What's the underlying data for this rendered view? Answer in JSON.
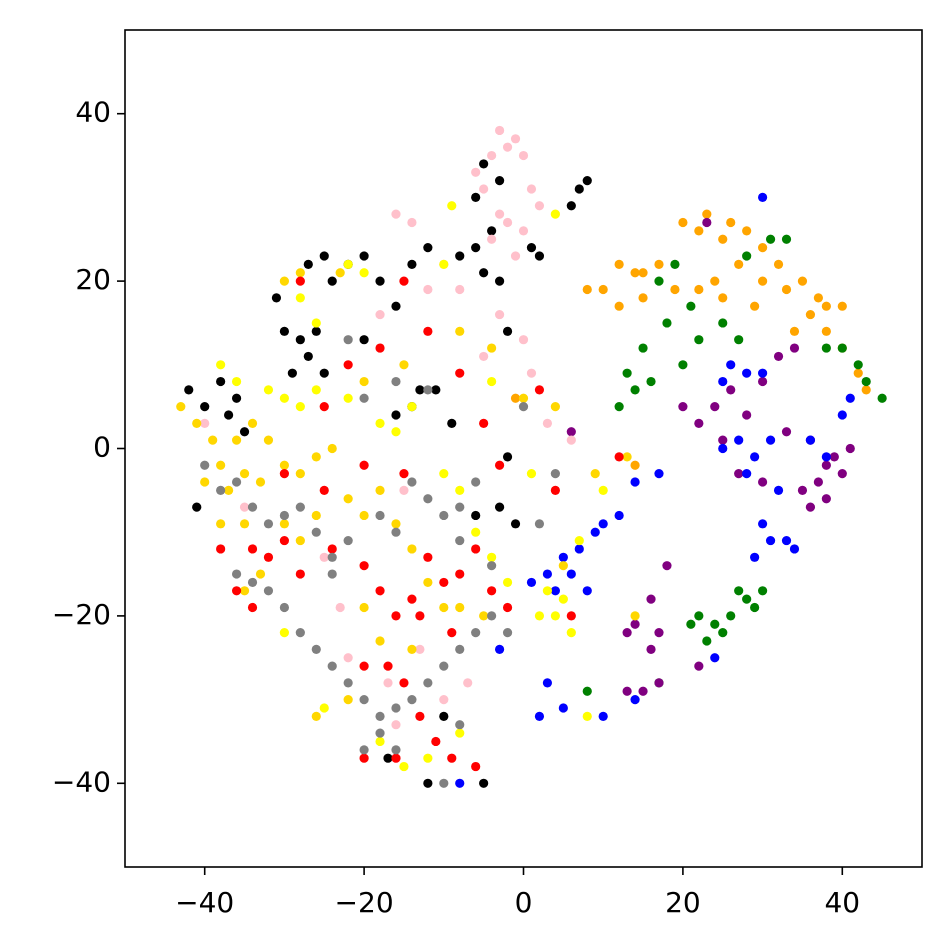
{
  "chart_data": {
    "type": "scatter",
    "xlim": [
      -50,
      50
    ],
    "ylim": [
      -50,
      50
    ],
    "xticks": [
      {
        "value": -40,
        "label": "−40"
      },
      {
        "value": -20,
        "label": "−20"
      },
      0,
      20,
      40
    ],
    "yticks": [
      {
        "value": -40,
        "label": "−40"
      },
      {
        "value": -20,
        "label": "−20"
      },
      0,
      20,
      40
    ],
    "grid": false,
    "series": [
      {
        "color": "#ffa500",
        "x": [
          20,
          23,
          26,
          28,
          30,
          25,
          22,
          27,
          32,
          35,
          37,
          38,
          40,
          36,
          34,
          33,
          30,
          12,
          14,
          17,
          10,
          12,
          15,
          19,
          22,
          25,
          29,
          40,
          42,
          43,
          24,
          38,
          8,
          15,
          -1,
          14
        ],
        "values": [
          27,
          28,
          27,
          26,
          24,
          25,
          26,
          22,
          22,
          20,
          18,
          17,
          17,
          16,
          14,
          19,
          20,
          22,
          21,
          22,
          19,
          17,
          18,
          19,
          19,
          18,
          17,
          12,
          9,
          7,
          20,
          14,
          19,
          21,
          6,
          -2
        ]
      },
      {
        "color": "#008000",
        "x": [
          22,
          20,
          18,
          15,
          13,
          12,
          14,
          16,
          25,
          27,
          21,
          19,
          17,
          28,
          31,
          33,
          42,
          40,
          43,
          45,
          38,
          22,
          24,
          26,
          28,
          29,
          27,
          25,
          21,
          30,
          23,
          17,
          8
        ],
        "values": [
          13,
          10,
          15,
          12,
          9,
          5,
          7,
          8,
          15,
          13,
          17,
          22,
          20,
          23,
          25,
          25,
          10,
          12,
          8,
          6,
          12,
          -20,
          -21,
          -20,
          -18,
          -19,
          -17,
          -22,
          -21,
          -17,
          -23,
          -28,
          -29
        ]
      },
      {
        "color": "#800080",
        "x": [
          24,
          26,
          20,
          22,
          28,
          30,
          32,
          34,
          36,
          38,
          37,
          35,
          38,
          40,
          36,
          39,
          33,
          41,
          30,
          27,
          18,
          16,
          14,
          17,
          16,
          13,
          15,
          17,
          13,
          22,
          25,
          23,
          6
        ],
        "values": [
          5,
          7,
          5,
          3,
          4,
          8,
          11,
          12,
          1,
          -2,
          -4,
          -5,
          -6,
          -3,
          -7,
          -1,
          2,
          0,
          -4,
          -3,
          -14,
          -18,
          -21,
          -22,
          -24,
          -22,
          -29,
          -28,
          -29,
          -26,
          1,
          27,
          2
        ]
      },
      {
        "color": "#0000ff",
        "x": [
          25,
          28,
          30,
          26,
          27,
          29,
          31,
          25,
          28,
          32,
          30,
          31,
          33,
          29,
          34,
          36,
          38,
          40,
          41,
          3,
          5,
          7,
          9,
          4,
          1,
          6,
          8,
          10,
          12,
          14,
          17,
          2,
          5,
          3,
          10,
          14,
          24,
          30,
          -3,
          -8
        ],
        "values": [
          8,
          9,
          9,
          10,
          1,
          -1,
          1,
          0,
          -3,
          -5,
          -9,
          -11,
          -11,
          -13,
          -12,
          1,
          -1,
          4,
          6,
          -15,
          -13,
          -12,
          -10,
          -17,
          -16,
          -15,
          -17,
          -9,
          -8,
          -4,
          -3,
          -32,
          -31,
          -28,
          -32,
          -30,
          -25,
          30,
          -24,
          -40
        ]
      },
      {
        "color": "#000000",
        "x": [
          -42,
          -38,
          -40,
          -37,
          -35,
          -36,
          -29,
          -27,
          -25,
          -28,
          -30,
          -26,
          -31,
          -27,
          -25,
          -22,
          -20,
          -24,
          -18,
          -16,
          -14,
          -12,
          -8,
          -6,
          -5,
          -4,
          -5,
          -6,
          -3,
          6,
          7,
          8,
          -11,
          -14,
          -13,
          -9,
          -16,
          -3,
          1,
          2,
          -2,
          -20,
          -2,
          -3,
          -1,
          -6,
          -41,
          -12,
          -5,
          -10,
          -17
        ],
        "values": [
          7,
          8,
          5,
          4,
          2,
          6,
          9,
          11,
          9,
          13,
          14,
          14,
          18,
          22,
          23,
          22,
          23,
          20,
          20,
          17,
          22,
          24,
          23,
          24,
          21,
          26,
          34,
          30,
          32,
          29,
          31,
          32,
          7,
          5,
          7,
          3,
          4,
          20,
          24,
          23,
          14,
          13,
          -1,
          -7,
          -9,
          -8,
          -7,
          -40,
          -40,
          -32,
          -37
        ]
      },
      {
        "color": "#ffc0cb",
        "x": [
          -3,
          -1,
          -2,
          0,
          -4,
          -6,
          -5,
          1,
          2,
          -3,
          -2,
          0,
          -4,
          -1,
          -14,
          -16,
          -10,
          -8,
          -12,
          -18,
          -3,
          0,
          -5,
          1,
          -15,
          -20,
          -25,
          -23,
          -22,
          -17,
          -13,
          -10,
          -7,
          -16,
          3,
          6,
          -40,
          -35
        ],
        "values": [
          38,
          37,
          36,
          35,
          35,
          33,
          31,
          31,
          29,
          28,
          27,
          26,
          25,
          23,
          27,
          28,
          22,
          19,
          19,
          16,
          16,
          13,
          11,
          9,
          -5,
          -2,
          -13,
          -19,
          -25,
          -28,
          -24,
          -30,
          -28,
          -33,
          3,
          1,
          3,
          -7
        ]
      },
      {
        "color": "#ffff00",
        "x": [
          -38,
          -36,
          -32,
          -30,
          -28,
          -26,
          -22,
          -18,
          -16,
          -14,
          -10,
          -8,
          -6,
          -4,
          -2,
          3,
          5,
          4,
          2,
          6,
          -18,
          -15,
          -12,
          -8,
          -22,
          -20,
          -26,
          -28,
          -10,
          -9,
          4,
          8,
          -4,
          1,
          10,
          7,
          -30,
          -25
        ],
        "values": [
          10,
          8,
          7,
          6,
          5,
          7,
          6,
          3,
          2,
          5,
          -3,
          -5,
          -10,
          -13,
          -16,
          -17,
          -18,
          -20,
          -20,
          -22,
          -35,
          -38,
          -37,
          -34,
          22,
          21,
          15,
          18,
          22,
          29,
          28,
          -32,
          8,
          -3,
          -5,
          -11,
          -22,
          -31
        ]
      },
      {
        "color": "#ffd700",
        "x": [
          -43,
          -41,
          -39,
          -38,
          -40,
          -37,
          -35,
          -33,
          -36,
          -34,
          -32,
          -30,
          -28,
          -26,
          -24,
          -38,
          -35,
          -30,
          -28,
          -26,
          -22,
          -20,
          -18,
          -16,
          -14,
          -12,
          -10,
          -8,
          -5,
          -20,
          -18,
          -14,
          -28,
          -30,
          -23,
          -8,
          -4,
          -20,
          -15,
          0,
          4,
          9,
          13,
          -26,
          -22,
          -33,
          -35,
          14,
          5
        ],
        "values": [
          5,
          3,
          1,
          -2,
          -4,
          -5,
          -3,
          -4,
          1,
          3,
          1,
          -2,
          -3,
          -1,
          0,
          -9,
          -9,
          -9,
          -11,
          -8,
          -6,
          -8,
          -5,
          -9,
          -12,
          -16,
          -19,
          -19,
          -20,
          -19,
          -23,
          -24,
          21,
          20,
          21,
          14,
          12,
          8,
          10,
          6,
          5,
          -3,
          -1,
          -32,
          -30,
          -15,
          -17,
          -20,
          -14
        ]
      },
      {
        "color": "#ff0000",
        "x": [
          -38,
          -34,
          -32,
          -30,
          -36,
          -34,
          -28,
          -24,
          -20,
          -18,
          -16,
          -14,
          -12,
          -10,
          -8,
          -6,
          -4,
          -2,
          -9,
          -13,
          -20,
          -17,
          -15,
          -13,
          -11,
          -16,
          -20,
          -9,
          -6,
          -25,
          -22,
          -18,
          -12,
          -8,
          -5,
          2,
          4,
          -15,
          -28,
          -15,
          -30,
          6,
          12,
          -20,
          -3,
          -25
        ],
        "values": [
          -12,
          -12,
          -13,
          -11,
          -17,
          -19,
          -15,
          -12,
          -14,
          -17,
          -20,
          -18,
          -13,
          -16,
          -15,
          -12,
          -17,
          -19,
          -22,
          -20,
          -26,
          -26,
          -28,
          -32,
          -35,
          -37,
          -37,
          -37,
          -38,
          5,
          10,
          12,
          14,
          9,
          3,
          7,
          -5,
          -3,
          20,
          20,
          -3,
          -20,
          -1,
          -2,
          -2,
          -5
        ]
      },
      {
        "color": "#808080",
        "x": [
          -40,
          -38,
          -36,
          -34,
          -32,
          -30,
          -28,
          -26,
          -24,
          -22,
          -36,
          -34,
          -32,
          -30,
          -28,
          -26,
          -24,
          -22,
          -20,
          -18,
          -16,
          -14,
          -12,
          -10,
          -8,
          -6,
          -4,
          -2,
          -18,
          -20,
          -16,
          -10,
          -8,
          -14,
          -12,
          -10,
          -8,
          -6,
          -16,
          -18,
          -20,
          -16,
          -12,
          -8,
          -4,
          -24,
          2,
          4,
          0,
          -22
        ],
        "values": [
          -2,
          -5,
          -4,
          -7,
          -9,
          -8,
          -7,
          -10,
          -13,
          -11,
          -15,
          -16,
          -17,
          -19,
          -22,
          -24,
          -26,
          -28,
          -30,
          -32,
          -31,
          -30,
          -28,
          -26,
          -24,
          -22,
          -20,
          -22,
          -34,
          -36,
          -36,
          -40,
          -33,
          -4,
          -6,
          -8,
          -7,
          -4,
          -10,
          -8,
          6,
          8,
          7,
          -11,
          -14,
          -15,
          -9,
          -3,
          5,
          13
        ]
      }
    ]
  }
}
